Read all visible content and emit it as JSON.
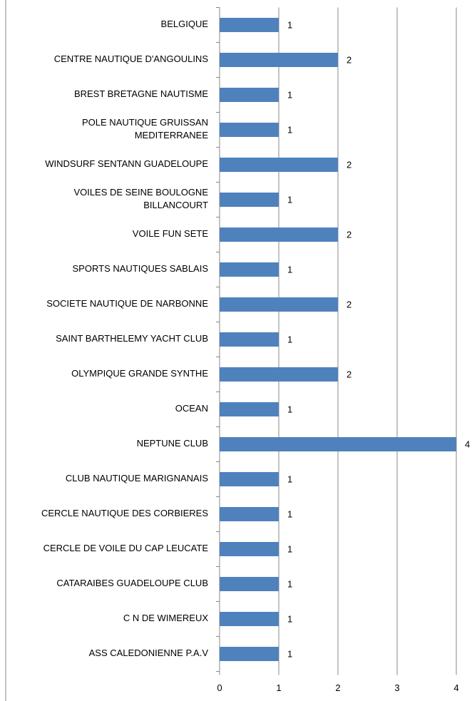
{
  "chart_data": {
    "type": "bar",
    "orientation": "horizontal",
    "categories": [
      "BELGIQUE",
      "CENTRE NAUTIQUE D'ANGOULINS",
      "BREST BRETAGNE NAUTISME",
      "POLE NAUTIQUE GRUISSAN MEDITERRANEE",
      "WINDSURF SENTANN GUADELOUPE",
      "VOILES DE SEINE BOULOGNE BILLANCOURT",
      "VOILE FUN SETE",
      "SPORTS NAUTIQUES SABLAIS",
      "SOCIETE NAUTIQUE DE NARBONNE",
      "SAINT BARTHELEMY YACHT CLUB",
      "OLYMPIQUE GRANDE SYNTHE",
      "OCEAN",
      "NEPTUNE CLUB",
      "CLUB NAUTIQUE MARIGNANAIS",
      "CERCLE NAUTIQUE DES CORBIERES",
      "CERCLE DE VOILE DU CAP LEUCATE",
      "CATARAIBES GUADELOUPE CLUB",
      "C N DE WIMEREUX",
      "ASS CALEDONIENNE P.A.V"
    ],
    "values": [
      1,
      2,
      1,
      1,
      2,
      1,
      2,
      1,
      2,
      1,
      2,
      1,
      4,
      1,
      1,
      1,
      1,
      1,
      1
    ],
    "color": "#4f81bd",
    "xlim": [
      0,
      4
    ],
    "xticks": [
      0,
      1,
      2,
      3,
      4
    ],
    "grid": true
  }
}
